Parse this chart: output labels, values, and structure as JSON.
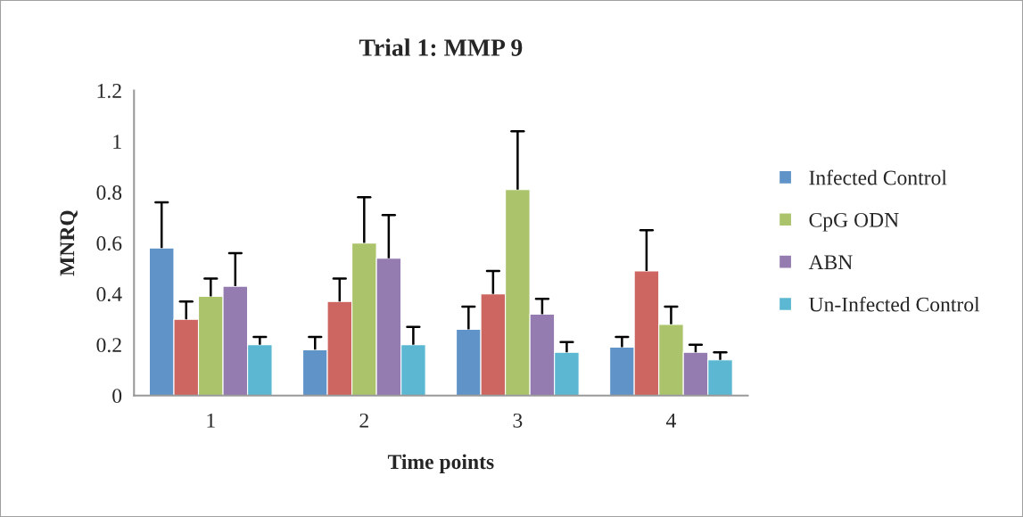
{
  "chart_data": {
    "type": "bar",
    "title": "Trial 1: MMP 9",
    "xlabel": "Time points",
    "ylabel": "MNRQ",
    "categories": [
      "1",
      "2",
      "3",
      "4"
    ],
    "series": [
      {
        "name": "Infected Control",
        "color": "#6094c8",
        "values": [
          0.58,
          0.18,
          0.26,
          0.19
        ],
        "errors": [
          [
            0.58,
            0.76
          ],
          [
            0.18,
            0.23
          ],
          [
            0.26,
            0.35
          ],
          [
            0.19,
            0.23
          ]
        ]
      },
      {
        "color": "#cd6660",
        "values": [
          0.3,
          0.37,
          0.4,
          0.49
        ],
        "errors": [
          [
            0.3,
            0.37
          ],
          [
            0.37,
            0.46
          ],
          [
            0.4,
            0.49
          ],
          [
            0.49,
            0.65
          ]
        ]
      },
      {
        "name": "CpG ODN",
        "color": "#abc46c",
        "values": [
          0.39,
          0.6,
          0.81,
          0.28
        ],
        "errors": [
          [
            0.39,
            0.46
          ],
          [
            0.6,
            0.78
          ],
          [
            0.81,
            1.04
          ],
          [
            0.28,
            0.35
          ]
        ]
      },
      {
        "name": "ABN",
        "color": "#947bb0",
        "values": [
          0.43,
          0.54,
          0.32,
          0.17
        ],
        "errors": [
          [
            0.43,
            0.56
          ],
          [
            0.54,
            0.71
          ],
          [
            0.32,
            0.38
          ],
          [
            0.17,
            0.2
          ]
        ]
      },
      {
        "name": "Un-Infected Control",
        "color": "#5cb8d2",
        "values": [
          0.2,
          0.2,
          0.17,
          0.14
        ],
        "errors": [
          [
            0.2,
            0.23
          ],
          [
            0.2,
            0.27
          ],
          [
            0.17,
            0.21
          ],
          [
            0.14,
            0.17
          ]
        ]
      }
    ],
    "ylim": [
      0,
      1.2
    ],
    "yticks": [
      0,
      0.2,
      0.4,
      0.6,
      0.8,
      1,
      1.2
    ],
    "grid": false,
    "legend": "right"
  }
}
